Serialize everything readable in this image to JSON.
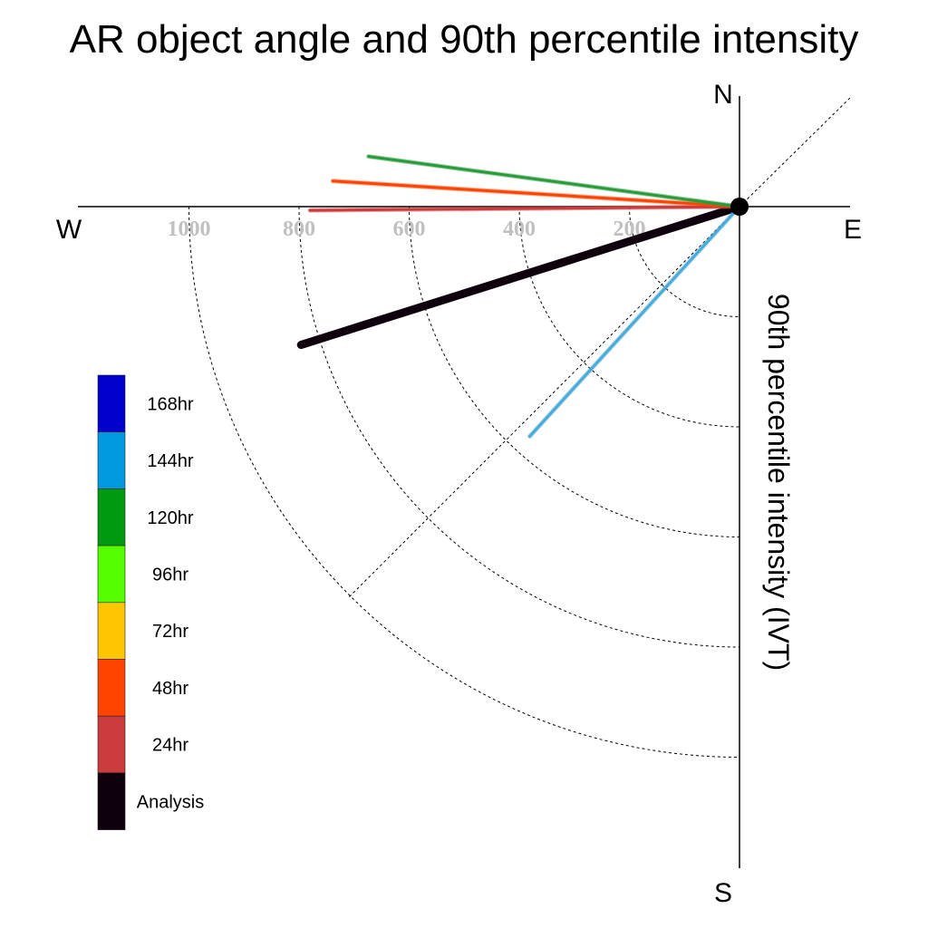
{
  "chart_data": {
    "type": "polar-vector",
    "title": "AR object angle and 90th percentile intensity",
    "ylabel": "90th percentile intensity (IVT)",
    "compass": {
      "north": "N",
      "south": "S",
      "east": "E",
      "west": "W"
    },
    "radial_ticks": [
      "1000",
      "800",
      "600",
      "400",
      "200"
    ],
    "radial_rings": [
      200,
      400,
      600,
      800,
      1000
    ],
    "r_max": 1000,
    "series": [
      {
        "name": "Analysis",
        "angle_deg": 197.5,
        "intensity": 835,
        "color": "#0e000c"
      },
      {
        "name": "24hr",
        "angle_deg": 180.5,
        "intensity": 780,
        "color": "#cc3c3c"
      },
      {
        "name": "48hr",
        "angle_deg": 176.4,
        "intensity": 740,
        "color": "#ff4400"
      },
      {
        "name": "120hr",
        "angle_deg": 172.3,
        "intensity": 680,
        "color": "#2a9b3a"
      },
      {
        "name": "144hr",
        "angle_deg": 227.6,
        "intensity": 565,
        "color": "#4aaad8"
      }
    ],
    "legend": {
      "placement": "left",
      "items": [
        {
          "label": "168hr",
          "color": "#0000cc"
        },
        {
          "label": "144hr",
          "color": "#0099e0"
        },
        {
          "label": "120hr",
          "color": "#009a10"
        },
        {
          "label": "96hr",
          "color": "#55ff00"
        },
        {
          "label": "72hr",
          "color": "#ffc500"
        },
        {
          "label": "48hr",
          "color": "#ff4400"
        },
        {
          "label": "24hr",
          "color": "#cc3c3c"
        },
        {
          "label": "Analysis",
          "color": "#0e000c"
        }
      ]
    }
  }
}
